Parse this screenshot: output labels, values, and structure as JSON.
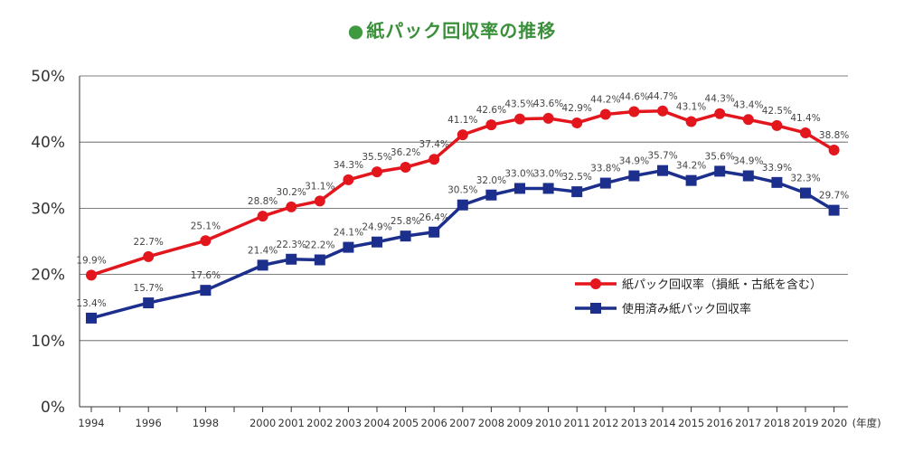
{
  "title": "紙パック回収率の推移",
  "title_marker": "●",
  "chart_data": {
    "type": "line",
    "x": [
      1994,
      1996,
      1998,
      2000,
      2001,
      2002,
      2003,
      2004,
      2005,
      2006,
      2007,
      2008,
      2009,
      2010,
      2011,
      2012,
      2013,
      2014,
      2015,
      2016,
      2017,
      2018,
      2019,
      2020
    ],
    "x_unit_label": "(年度)",
    "ylim": [
      0,
      50
    ],
    "yticks": [
      0,
      10,
      20,
      30,
      40,
      50
    ],
    "ytick_labels": [
      "0%",
      "10%",
      "20%",
      "30%",
      "40%",
      "50%"
    ],
    "grid": "horizontal",
    "legend_position": "right",
    "series": [
      {
        "name": "紙パック回収率（損紙・古紙を含む）",
        "color": "#e3161e",
        "marker": "circle",
        "values": [
          19.9,
          22.7,
          25.1,
          28.8,
          30.2,
          31.1,
          34.3,
          35.5,
          36.2,
          37.4,
          41.1,
          42.6,
          43.5,
          43.6,
          42.9,
          44.2,
          44.6,
          44.7,
          43.1,
          44.3,
          43.4,
          42.5,
          41.4,
          38.8
        ],
        "labels": [
          "19.9%",
          "22.7%",
          "25.1%",
          "28.8%",
          "30.2%",
          "31.1%",
          "34.3%",
          "35.5%",
          "36.2%",
          "37.4%",
          "41.1%",
          "42.6%",
          "43.5%",
          "43.6%",
          "42.9%",
          "44.2%",
          "44.6%",
          "44.7%",
          "43.1%",
          "44.3%",
          "43.4%",
          "42.5%",
          "41.4%",
          "38.8%"
        ]
      },
      {
        "name": "使用済み紙パック回収率",
        "color": "#1c2f8c",
        "marker": "square",
        "values": [
          13.4,
          15.7,
          17.6,
          21.4,
          22.3,
          22.2,
          24.1,
          24.9,
          25.8,
          26.4,
          30.5,
          32.0,
          33.0,
          33.0,
          32.5,
          33.8,
          34.9,
          35.7,
          34.2,
          35.6,
          34.9,
          33.9,
          32.3,
          29.7
        ],
        "labels": [
          "13.4%",
          "15.7%",
          "17.6%",
          "21.4%",
          "22.3%",
          "22.2%",
          "24.1%",
          "24.9%",
          "25.8%",
          "26.4%",
          "30.5%",
          "32.0%",
          "33.0%",
          "33.0%",
          "32.5%",
          "33.8%",
          "34.9%",
          "35.7%",
          "34.2%",
          "35.6%",
          "34.9%",
          "33.9%",
          "32.3%",
          "29.7%"
        ]
      }
    ]
  }
}
